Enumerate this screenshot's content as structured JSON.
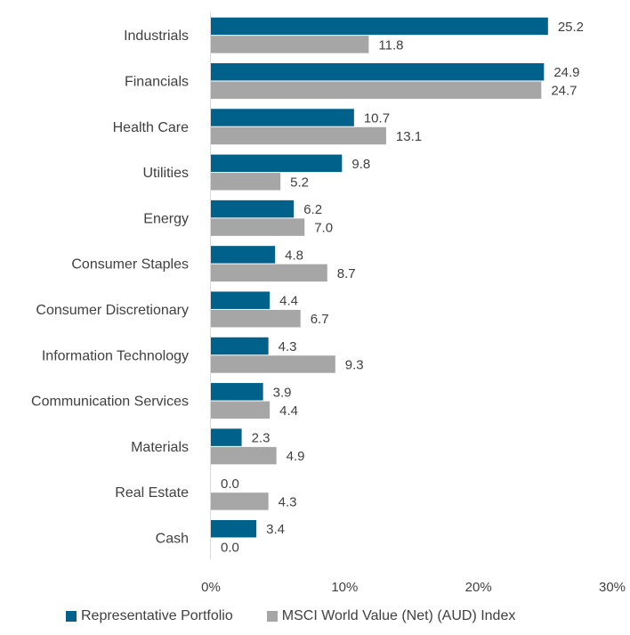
{
  "chart_data": {
    "type": "bar",
    "orientation": "horizontal",
    "categories": [
      "Industrials",
      "Financials",
      "Health Care",
      "Utilities",
      "Energy",
      "Consumer Staples",
      "Consumer Discretionary",
      "Information Technology",
      "Communication Services",
      "Materials",
      "Real Estate",
      "Cash"
    ],
    "series": [
      {
        "name": "Representative Portfolio",
        "color": "#00628B",
        "values": [
          25.2,
          24.9,
          10.7,
          9.8,
          6.2,
          4.8,
          4.4,
          4.3,
          3.9,
          2.3,
          0.0,
          3.4
        ],
        "labels": [
          "25.2",
          "24.9",
          "10.7",
          "9.8",
          "6.2",
          "4.8",
          "4.4",
          "4.3",
          "3.9",
          "2.3",
          "0.0",
          "3.4"
        ]
      },
      {
        "name": "MSCI World Value (Net) (AUD) Index",
        "color": "#A6A6A6",
        "values": [
          11.8,
          24.7,
          13.1,
          5.2,
          7.0,
          8.7,
          6.7,
          9.3,
          4.4,
          4.9,
          4.3,
          0.0
        ],
        "labels": [
          "11.8",
          "24.7",
          "13.1",
          "5.2",
          "7.0",
          "8.7",
          "6.7",
          "9.3",
          "4.4",
          "4.9",
          "4.3",
          "0.0"
        ]
      }
    ],
    "xlim": [
      0,
      30
    ],
    "x_ticks": [
      0,
      10,
      20,
      30
    ],
    "x_tick_labels": [
      "0%",
      "10%",
      "20%",
      "30%"
    ],
    "grid": false,
    "legend_position": "bottom"
  }
}
